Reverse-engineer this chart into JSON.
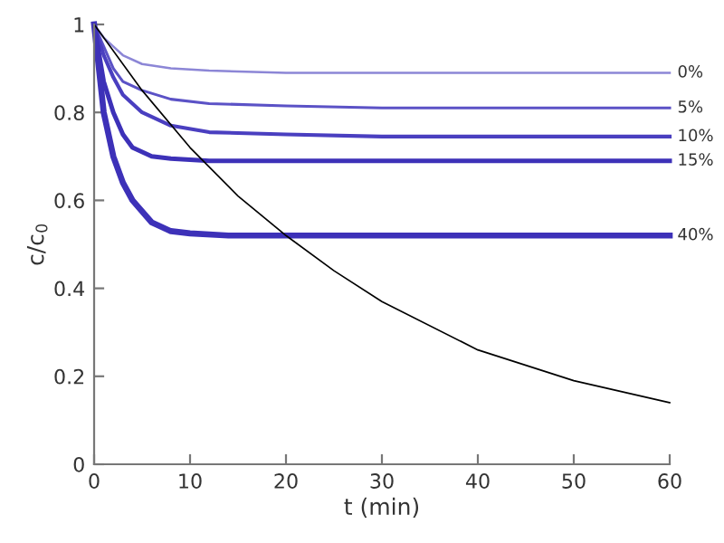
{
  "chart_data": {
    "type": "line",
    "xlabel": "t (min)",
    "ylabel": "c/c$_{0}$",
    "xlim": [
      0,
      60
    ],
    "ylim": [
      0,
      1
    ],
    "xticks": [
      0,
      10,
      20,
      30,
      40,
      50,
      60
    ],
    "yticks": [
      0,
      0.2,
      0.4,
      0.6,
      0.8,
      1
    ],
    "grid": false,
    "legend": false,
    "marker": "none",
    "line_style": "solid",
    "series": [
      {
        "name": "0%",
        "color": "#8c86d6",
        "x": [
          0,
          1,
          2,
          3,
          5,
          8,
          12,
          20,
          30,
          60
        ],
        "values": [
          1,
          0.97,
          0.95,
          0.93,
          0.91,
          0.9,
          0.895,
          0.89,
          0.89,
          0.89
        ]
      },
      {
        "name": "5%",
        "color": "#5b52c6",
        "x": [
          0,
          1,
          2,
          3,
          5,
          8,
          12,
          20,
          30,
          60
        ],
        "values": [
          1,
          0.95,
          0.9,
          0.87,
          0.85,
          0.83,
          0.82,
          0.815,
          0.81,
          0.81
        ]
      },
      {
        "name": "10%",
        "color": "#4a3fc0",
        "x": [
          0,
          1,
          2,
          3,
          5,
          8,
          12,
          20,
          30,
          60
        ],
        "values": [
          1,
          0.93,
          0.88,
          0.84,
          0.8,
          0.77,
          0.755,
          0.75,
          0.745,
          0.745
        ]
      },
      {
        "name": "15%",
        "color": "#3d31b8",
        "x": [
          0,
          1,
          2,
          3,
          4,
          6,
          8,
          12,
          20,
          60
        ],
        "values": [
          1,
          0.87,
          0.8,
          0.75,
          0.72,
          0.7,
          0.695,
          0.69,
          0.69,
          0.69
        ]
      },
      {
        "name": "40%",
        "color": "#3d31b8",
        "x": [
          0,
          1,
          2,
          3,
          4,
          6,
          8,
          10,
          14,
          20,
          60
        ],
        "values": [
          1,
          0.8,
          0.7,
          0.64,
          0.6,
          0.55,
          0.53,
          0.525,
          0.52,
          0.52,
          0.52
        ]
      },
      {
        "color": "#000000",
        "x": [
          0,
          5,
          10,
          15,
          20,
          25,
          30,
          40,
          50,
          60
        ],
        "values": [
          1,
          0.85,
          0.72,
          0.61,
          0.52,
          0.44,
          0.37,
          0.26,
          0.19,
          0.14
        ]
      }
    ]
  }
}
